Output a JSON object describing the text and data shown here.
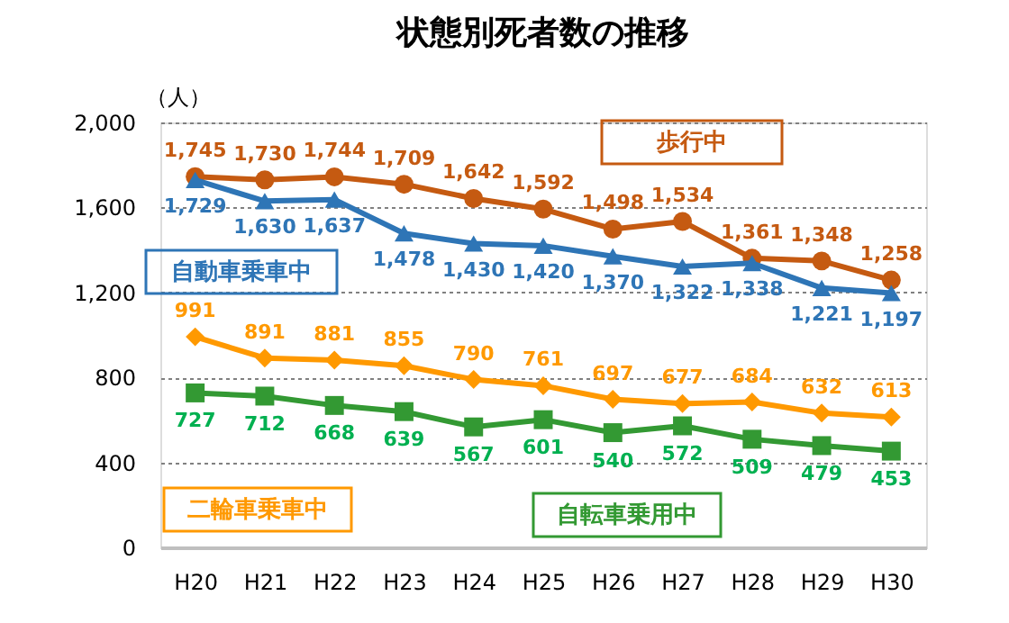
{
  "chart_data": {
    "type": "line",
    "title": "状態別死者数の推移",
    "ylabel": "（人）",
    "categories": [
      "H20",
      "H21",
      "H22",
      "H23",
      "H24",
      "H25",
      "H26",
      "H27",
      "H28",
      "H29",
      "H30"
    ],
    "series": [
      {
        "name": "歩行中",
        "color": "#c55a11",
        "marker": "circle",
        "values": [
          1745,
          1730,
          1744,
          1709,
          1642,
          1592,
          1498,
          1534,
          1361,
          1348,
          1258
        ],
        "value_labels": [
          "1,745",
          "1,730",
          "1,744",
          "1,709",
          "1,642",
          "1,592",
          "1,498",
          "1,534",
          "1,361",
          "1,348",
          "1,258"
        ]
      },
      {
        "name": "自動車乗車中",
        "color": "#2e75b6",
        "marker": "triangle",
        "values": [
          1729,
          1630,
          1637,
          1478,
          1430,
          1420,
          1370,
          1322,
          1338,
          1221,
          1197
        ],
        "value_labels": [
          "1,729",
          "1,630",
          "1,637",
          "1,478",
          "1,430",
          "1,420",
          "1,370",
          "1,322",
          "1,338",
          "1,221",
          "1,197"
        ]
      },
      {
        "name": "二輪車乗車中",
        "color": "#ff9900",
        "marker": "diamond",
        "values": [
          991,
          891,
          881,
          855,
          790,
          761,
          697,
          677,
          684,
          632,
          613
        ]
      },
      {
        "name": "自転車乗用中",
        "color": "#339933",
        "marker": "square",
        "values": [
          727,
          712,
          668,
          639,
          567,
          601,
          540,
          572,
          509,
          479,
          453
        ]
      }
    ],
    "ylim": [
      0,
      2000
    ],
    "yticks": [
      0,
      {
        "value": 400,
        "label": "400"
      },
      {
        "value": 800,
        "label": "800"
      },
      {
        "value": 1200,
        "label": "1,200"
      },
      {
        "value": 1600,
        "label": "1,600"
      },
      {
        "value": 2000,
        "label": "2,000"
      }
    ],
    "grid": "y",
    "legend": false,
    "data_labels": true,
    "line_style": "solid"
  }
}
